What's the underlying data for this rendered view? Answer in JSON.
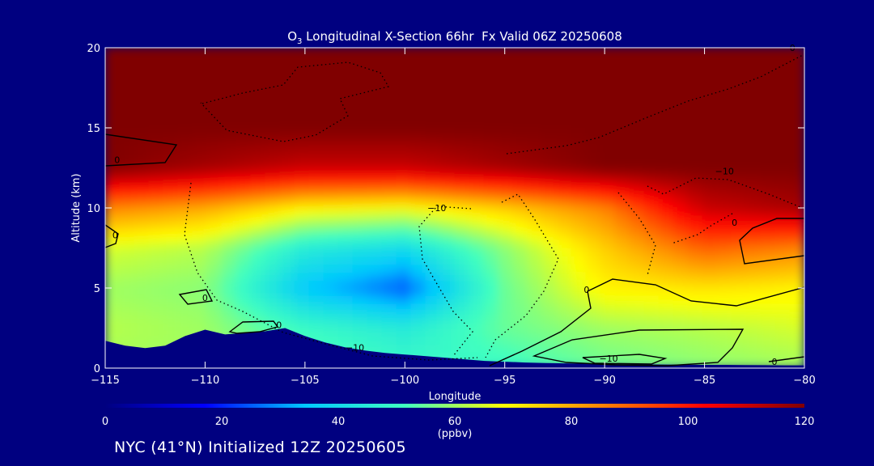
{
  "chart_data": {
    "type": "heatmap",
    "title_prefix": "O",
    "title_sub": "3",
    "title_rest": " Longitudinal X-Section 66hr  Fx Valid 06Z 20250608",
    "xlabel": "Longitude",
    "ylabel": "Altitude (km)",
    "xlim": [
      -115,
      -80
    ],
    "ylim": [
      0,
      20
    ],
    "x_ticks": [
      -115,
      -110,
      -105,
      -100,
      -95,
      -90,
      -85,
      -80
    ],
    "x_tick_labels": [
      "−115",
      "−110",
      "−105",
      "−100",
      "−95",
      "−90",
      "−85",
      "−80"
    ],
    "y_ticks": [
      0,
      5,
      10,
      15,
      20
    ],
    "y_tick_labels": [
      "0",
      "5",
      "10",
      "15",
      "20"
    ],
    "colorbar": {
      "min": 0,
      "max": 120,
      "ticks": [
        0,
        20,
        40,
        60,
        80,
        100,
        120
      ],
      "tick_labels": [
        "0",
        "20",
        "40",
        "60",
        "80",
        "100",
        "120"
      ],
      "unit": "(ppbv)",
      "colormap": [
        "#000080",
        "#0000ff",
        "#00c8ff",
        "#40ffc0",
        "#ffff00",
        "#ff8000",
        "#ff0000",
        "#800000"
      ]
    },
    "field_ppbv": {
      "x": [
        -115,
        -110,
        -105,
        -100,
        -95,
        -90,
        -85,
        -80
      ],
      "y": [
        0,
        2.5,
        5,
        7.5,
        10,
        12.5,
        15,
        20
      ],
      "values": [
        [
          60,
          60,
          55,
          50,
          50,
          55,
          58,
          60
        ],
        [
          62,
          60,
          50,
          45,
          55,
          60,
          62,
          65
        ],
        [
          60,
          58,
          35,
          25,
          55,
          70,
          72,
          70
        ],
        [
          65,
          62,
          45,
          40,
          58,
          75,
          90,
          85
        ],
        [
          85,
          80,
          70,
          68,
          75,
          85,
          110,
          115
        ],
        [
          120,
          115,
          110,
          110,
          115,
          120,
          120,
          120
        ],
        [
          120,
          120,
          120,
          120,
          120,
          120,
          120,
          120
        ],
        [
          120,
          120,
          120,
          120,
          120,
          120,
          120,
          120
        ]
      ]
    },
    "terrain_km": {
      "x": [
        -115,
        -114,
        -113,
        -112,
        -111,
        -110,
        -109,
        -108,
        -107,
        -106,
        -105,
        -104,
        -103,
        -102,
        -101,
        -100,
        -99,
        -98,
        -97,
        -96,
        -95,
        -94,
        -93,
        -92,
        -91,
        -90,
        -89,
        -88,
        -87,
        -86,
        -85,
        -84,
        -83,
        -82,
        -81,
        -80
      ],
      "y": [
        1.7,
        1.4,
        1.25,
        1.4,
        2.0,
        2.4,
        2.1,
        2.2,
        2.3,
        2.5,
        2.0,
        1.6,
        1.3,
        1.1,
        0.95,
        0.85,
        0.75,
        0.65,
        0.55,
        0.45,
        0.4,
        0.35,
        0.32,
        0.3,
        0.28,
        0.26,
        0.24,
        0.23,
        0.22,
        0.21,
        0.2,
        0.2,
        0.19,
        0.18,
        0.17,
        0.17
      ]
    },
    "contour_labels": [
      {
        "text": "0",
        "x": -114.4,
        "y": 13.0
      },
      {
        "text": "0",
        "x": -114.5,
        "y": 8.3
      },
      {
        "text": "0",
        "x": -110.0,
        "y": 4.4
      },
      {
        "text": "0",
        "x": -106.3,
        "y": 2.7
      },
      {
        "text": "0",
        "x": -90.9,
        "y": 4.9
      },
      {
        "text": "0",
        "x": -83.5,
        "y": 9.1
      },
      {
        "text": "0",
        "x": -81.5,
        "y": 0.4
      },
      {
        "text": "0",
        "x": -80.6,
        "y": 20.0
      },
      {
        "text": "−10",
        "x": -98.4,
        "y": 10.0
      },
      {
        "text": "−10",
        "x": -84.0,
        "y": 12.3
      },
      {
        "text": "−10",
        "x": -102.5,
        "y": 1.3
      },
      {
        "text": "−10",
        "x": -89.8,
        "y": 0.6
      }
    ]
  },
  "footer": {
    "note": "NYC (41°N) Initialized 12Z 20250605"
  }
}
